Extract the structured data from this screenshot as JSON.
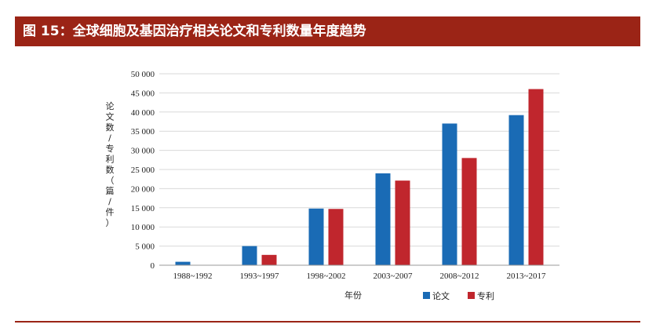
{
  "figure": {
    "title": "图 15：全球细胞及基因治疗相关论文和专利数量年度趋势"
  },
  "chart_data": {
    "type": "bar",
    "xlabel": "年份",
    "ylabel": "论文数/专利数（篇/件）",
    "ylim": [
      0,
      50000
    ],
    "yticks": [
      "0",
      "5 000",
      "10 000",
      "15 000",
      "20 000",
      "25 000",
      "30 000",
      "35 000",
      "40 000",
      "45 000",
      "50 000"
    ],
    "categories": [
      "1988~1992",
      "1993~1997",
      "1998~2002",
      "2003~2007",
      "2008~2012",
      "2013~2017"
    ],
    "grid": true,
    "legend_position": "bottom",
    "series": [
      {
        "name": "论文",
        "color": "#1a6bb5",
        "values": [
          900,
          5000,
          14800,
          24000,
          37000,
          39200
        ]
      },
      {
        "name": "专利",
        "color": "#c0262d",
        "values": [
          0,
          2700,
          14700,
          22100,
          28000,
          46000
        ]
      }
    ]
  }
}
